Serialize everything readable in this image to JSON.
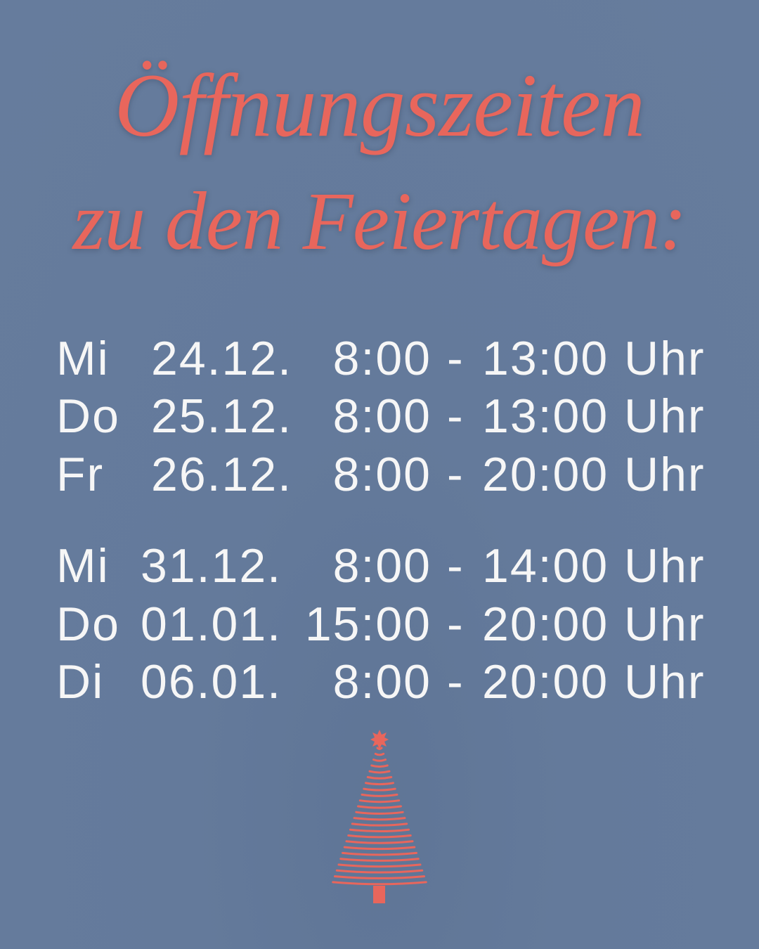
{
  "title": {
    "line1": "Öffnungszeiten",
    "line2": "zu den Feiertagen:"
  },
  "schedule": [
    {
      "day": "Mi",
      "date": "24.12.",
      "start": "8:00",
      "dash": "-",
      "end": "13:00",
      "unit": "Uhr"
    },
    {
      "day": "Do",
      "date": "25.12.",
      "start": "8:00",
      "dash": "-",
      "end": "13:00",
      "unit": "Uhr"
    },
    {
      "day": "Fr",
      "date": "26.12.",
      "start": "8:00",
      "dash": "-",
      "end": "20:00",
      "unit": "Uhr"
    },
    {
      "day": "Mi",
      "date": "31.12.",
      "start": "8:00",
      "dash": "-",
      "end": "14:00",
      "unit": "Uhr"
    },
    {
      "day": "Do",
      "date": "01.01.",
      "start": "15:00",
      "dash": "-",
      "end": "20:00",
      "unit": "Uhr"
    },
    {
      "day": "Di",
      "date": "06.01.",
      "start": "8:00",
      "dash": "-",
      "end": "20:00",
      "unit": "Uhr"
    }
  ],
  "colors": {
    "background": "#647a9b",
    "accent": "#e8665c",
    "text": "#f6f6f6"
  },
  "icons": {
    "decoration": "christmas-tree-icon"
  }
}
